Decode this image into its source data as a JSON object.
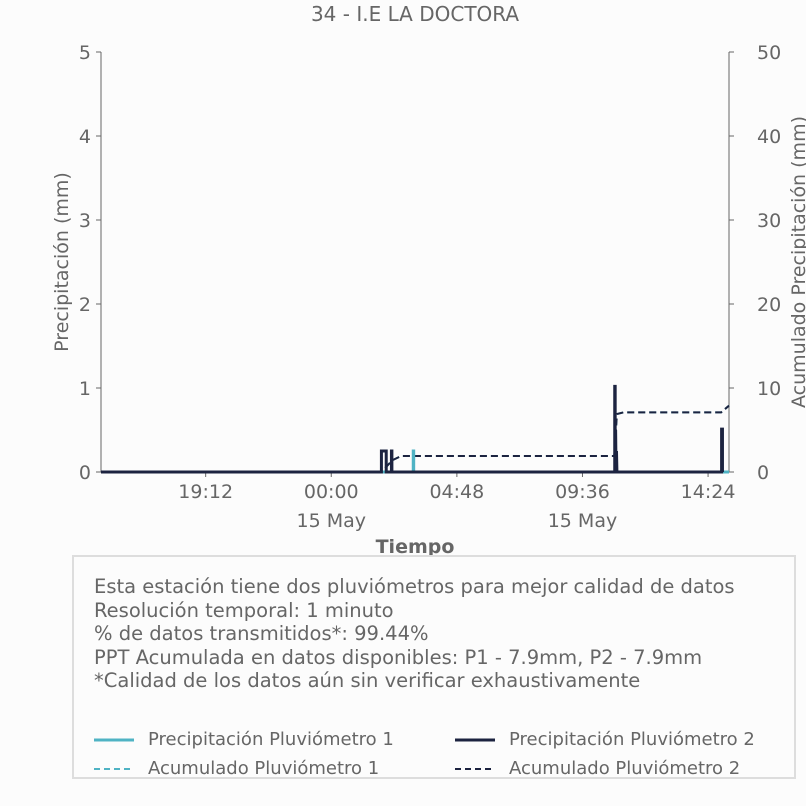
{
  "chart_data": {
    "type": "line",
    "title": "34 - I.E LA DOCTORA",
    "xlabel": "Tiempo",
    "ylabel": "Precipitación (mm)",
    "y2label": "Acumulado Precipitación (mm)",
    "ylim": [
      0,
      5
    ],
    "y2lim": [
      0,
      50
    ],
    "yticks": [
      "0",
      "1",
      "2",
      "3",
      "4",
      "5"
    ],
    "y2ticks": [
      "0",
      "10",
      "20",
      "30",
      "40",
      "50"
    ],
    "xlim": [
      "14 May 15:12",
      "15 May 15:12"
    ],
    "xticks": [
      {
        "time": "14 May 19:12",
        "label": "19:12",
        "sublabel": ""
      },
      {
        "time": "15 May 00:00",
        "label": "00:00",
        "sublabel": "15 May"
      },
      {
        "time": "15 May 04:48",
        "label": "04:48",
        "sublabel": ""
      },
      {
        "time": "15 May 09:36",
        "label": "09:36",
        "sublabel": "15 May"
      },
      {
        "time": "15 May 14:24",
        "label": "14:24",
        "sublabel": ""
      }
    ],
    "grid": false,
    "series": [
      {
        "name": "Precipitación Pluviómetro 1",
        "axis": "left",
        "style": "solid",
        "color": "#4fb3c4",
        "points": [
          [
            "14 May 15:12",
            0
          ],
          [
            "15 May 03:08",
            0
          ],
          [
            "15 May 03:08",
            0.25
          ],
          [
            "15 May 03:09",
            0.25
          ],
          [
            "15 May 03:09",
            0
          ],
          [
            "15 May 15:12",
            0
          ]
        ]
      },
      {
        "name": "Precipitación Pluviómetro 2",
        "axis": "left",
        "style": "solid",
        "color": "#1c2340",
        "points": [
          [
            "14 May 15:12",
            0
          ],
          [
            "15 May 01:55",
            0
          ],
          [
            "15 May 01:55",
            0.25
          ],
          [
            "15 May 02:06",
            0.25
          ],
          [
            "15 May 02:06",
            0
          ],
          [
            "15 May 02:18",
            0
          ],
          [
            "15 May 02:18",
            0.25
          ],
          [
            "15 May 02:19",
            0.25
          ],
          [
            "15 May 02:19",
            0
          ],
          [
            "15 May 10:50",
            0
          ],
          [
            "15 May 10:50",
            1.02
          ],
          [
            "15 May 10:51",
            1.02
          ],
          [
            "15 May 10:51",
            0
          ],
          [
            "15 May 10:52",
            0.5
          ],
          [
            "15 May 10:53",
            0
          ],
          [
            "15 May 10:54",
            0.25
          ],
          [
            "15 May 10:55",
            0
          ],
          [
            "15 May 14:55",
            0
          ],
          [
            "15 May 14:55",
            0.51
          ],
          [
            "15 May 14:57",
            0.51
          ],
          [
            "15 May 14:57",
            0
          ]
        ]
      },
      {
        "name": "Acumulado Pluviómetro 1",
        "axis": "right",
        "style": "dashed",
        "color": "#4fb3c4",
        "points": [
          [
            "14 May 15:12",
            0
          ],
          [
            "15 May 01:55",
            0
          ],
          [
            "15 May 02:20",
            1.4
          ],
          [
            "15 May 02:40",
            1.9
          ],
          [
            "15 May 10:49",
            1.9
          ],
          [
            "15 May 10:55",
            6.9
          ],
          [
            "15 May 11:10",
            7.1
          ],
          [
            "15 May 14:54",
            7.1
          ],
          [
            "15 May 15:12",
            7.9
          ]
        ]
      },
      {
        "name": "Acumulado Pluviómetro 2",
        "axis": "right",
        "style": "dashed",
        "color": "#1c2340",
        "points": [
          [
            "14 May 15:12",
            0
          ],
          [
            "15 May 01:55",
            0
          ],
          [
            "15 May 02:20",
            1.4
          ],
          [
            "15 May 02:40",
            1.9
          ],
          [
            "15 May 10:49",
            1.9
          ],
          [
            "15 May 10:55",
            6.9
          ],
          [
            "15 May 11:10",
            7.1
          ],
          [
            "15 May 14:54",
            7.1
          ],
          [
            "15 May 15:12",
            7.9
          ]
        ]
      }
    ]
  },
  "info": {
    "lines": [
      "Esta estación tiene dos pluviómetros para mejor calidad de datos",
      "Resolución temporal: 1 minuto",
      "% de datos transmitidos*: 99.44%",
      "PPT Acumulada en datos disponibles: P1 - 7.9mm, P2 - 7.9mm",
      "*Calidad de los datos aún sin verificar exhaustivamente"
    ]
  },
  "legend": {
    "items": [
      {
        "label": "Precipitación Pluviómetro 1",
        "style": "solid",
        "color": "#4fb3c4"
      },
      {
        "label": "Precipitación Pluviómetro 2",
        "style": "solid",
        "color": "#1c2340"
      },
      {
        "label": "Acumulado Pluviómetro 1",
        "style": "dashed",
        "color": "#4fb3c4"
      },
      {
        "label": "Acumulado Pluviómetro 2",
        "style": "dashed",
        "color": "#1c2340"
      }
    ]
  }
}
